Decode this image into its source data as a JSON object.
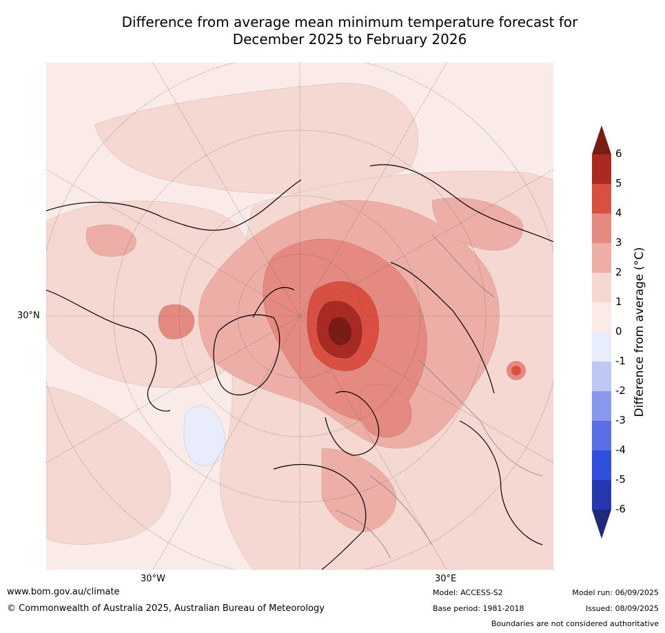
{
  "title": {
    "line1": "Difference from average mean minimum temperature forecast for",
    "line2": "December 2025 to February 2026"
  },
  "map": {
    "projection": "north-polar-stereographic",
    "lat_labels": [
      "30°N"
    ],
    "lon_labels": [
      "30°W",
      "30°E"
    ],
    "colors": {
      "ocean_bg": "#f9e8e6",
      "land_line": "#000000",
      "border_line": "#808080",
      "grid_line": "#555555"
    },
    "regions": [
      {
        "name": "arctic-warm-core",
        "anomaly_range": "5 to 6+"
      },
      {
        "name": "barents-kara-sea",
        "anomaly_range": "3 to 5"
      },
      {
        "name": "scandinavia-russia",
        "anomaly_range": "2 to 3"
      },
      {
        "name": "north-atlantic-cool-patch",
        "anomaly_range": "0 to -1"
      }
    ]
  },
  "colorbar": {
    "title": "Difference from average (°C)",
    "ticks": [
      "6",
      "5",
      "4",
      "3",
      "2",
      "1",
      "0",
      "-1",
      "-2",
      "-3",
      "-4",
      "-5",
      "-6"
    ],
    "levels": [
      {
        "min": 6,
        "max": null,
        "color": "#7a1c16"
      },
      {
        "min": 5,
        "max": 6,
        "color": "#a92a22"
      },
      {
        "min": 4,
        "max": 5,
        "color": "#d94f42"
      },
      {
        "min": 3,
        "max": 4,
        "color": "#e58a80"
      },
      {
        "min": 2,
        "max": 3,
        "color": "#edaea8"
      },
      {
        "min": 1,
        "max": 2,
        "color": "#f6d8d3"
      },
      {
        "min": 0,
        "max": 1,
        "color": "#fbebe8"
      },
      {
        "min": -1,
        "max": 0,
        "color": "#e8ecfb"
      },
      {
        "min": -2,
        "max": -1,
        "color": "#bfc8f4"
      },
      {
        "min": -3,
        "max": -2,
        "color": "#8898ec"
      },
      {
        "min": -4,
        "max": -3,
        "color": "#5a6fe5"
      },
      {
        "min": -5,
        "max": -4,
        "color": "#2f4fdc"
      },
      {
        "min": -6,
        "max": -5,
        "color": "#2538b0"
      },
      {
        "min": null,
        "max": -6,
        "color": "#1d2a7a"
      }
    ]
  },
  "footer": {
    "url": "www.bom.gov.au/climate",
    "copyright": "© Commonwealth of Australia 2025, Australian Bureau of Meteorology",
    "model": "Model: ACCESS-S2",
    "base_period": "Base period: 1981-2018",
    "model_run": "Model run: 06/09/2025",
    "issued": "Issued: 08/09/2025",
    "disclaimer": "Boundaries are not considered authoritative"
  }
}
